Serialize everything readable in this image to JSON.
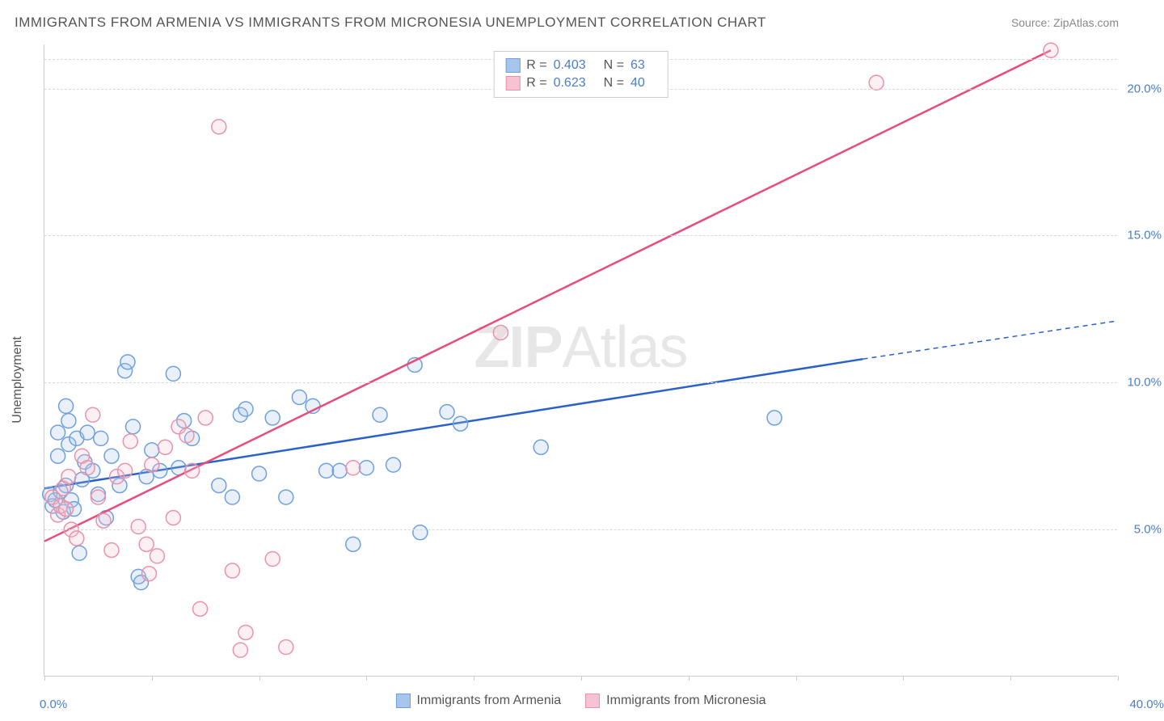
{
  "title": "IMMIGRANTS FROM ARMENIA VS IMMIGRANTS FROM MICRONESIA UNEMPLOYMENT CORRELATION CHART",
  "source": "Source: ZipAtlas.com",
  "watermark": "ZIPAtlas",
  "y_axis_label": "Unemployment",
  "chart": {
    "type": "scatter",
    "background_color": "#ffffff",
    "grid_color": "#d8d8d8",
    "axis_color": "#cccccc",
    "label_color": "#4a7ec9",
    "text_color": "#555555",
    "xlim": [
      0,
      40
    ],
    "ylim": [
      0,
      21.5
    ],
    "x_ticks": [
      0,
      4,
      8,
      12,
      16,
      20,
      24,
      28,
      32,
      36,
      40
    ],
    "x_tick_labels": {
      "0": "0.0%",
      "40": "40.0%"
    },
    "y_grid": [
      5,
      10,
      15,
      20
    ],
    "y_tick_labels": {
      "5": "5.0%",
      "10": "10.0%",
      "15": "15.0%",
      "20": "20.0%"
    },
    "marker_radius": 9,
    "marker_fill_opacity": 0.25,
    "marker_stroke_width": 1.5,
    "line_width": 2.5,
    "series": [
      {
        "name": "Immigrants from Armenia",
        "color_fill": "#a8c5eb",
        "color_stroke": "#6ea0de",
        "line_color": "#2a62c9",
        "r": "0.403",
        "n": "63",
        "regression": {
          "x1": 0,
          "y1": 6.4,
          "x2": 30.5,
          "y2": 10.8,
          "dash_x2": 40,
          "dash_y2": 12.1
        },
        "points": [
          [
            0.2,
            6.2
          ],
          [
            0.3,
            5.8
          ],
          [
            0.4,
            6.0
          ],
          [
            0.5,
            8.3
          ],
          [
            0.5,
            7.5
          ],
          [
            0.6,
            6.3
          ],
          [
            0.7,
            5.6
          ],
          [
            0.8,
            9.2
          ],
          [
            0.8,
            6.5
          ],
          [
            0.9,
            7.9
          ],
          [
            0.9,
            8.7
          ],
          [
            1.0,
            6.0
          ],
          [
            1.1,
            5.7
          ],
          [
            1.2,
            8.1
          ],
          [
            1.3,
            4.2
          ],
          [
            1.4,
            6.7
          ],
          [
            1.5,
            7.3
          ],
          [
            1.6,
            8.3
          ],
          [
            1.8,
            7.0
          ],
          [
            2.0,
            6.2
          ],
          [
            2.1,
            8.1
          ],
          [
            2.3,
            5.4
          ],
          [
            2.5,
            7.5
          ],
          [
            2.8,
            6.5
          ],
          [
            3.0,
            10.4
          ],
          [
            3.1,
            10.7
          ],
          [
            3.3,
            8.5
          ],
          [
            3.5,
            3.4
          ],
          [
            3.6,
            3.2
          ],
          [
            3.8,
            6.8
          ],
          [
            4.0,
            7.7
          ],
          [
            4.3,
            7.0
          ],
          [
            4.8,
            10.3
          ],
          [
            5.0,
            7.1
          ],
          [
            5.2,
            8.7
          ],
          [
            5.5,
            8.1
          ],
          [
            6.5,
            6.5
          ],
          [
            7.0,
            6.1
          ],
          [
            7.3,
            8.9
          ],
          [
            7.5,
            9.1
          ],
          [
            8.0,
            6.9
          ],
          [
            8.5,
            8.8
          ],
          [
            9.0,
            6.1
          ],
          [
            9.5,
            9.5
          ],
          [
            10.0,
            9.2
          ],
          [
            10.5,
            7.0
          ],
          [
            11.0,
            7.0
          ],
          [
            11.5,
            4.5
          ],
          [
            12.0,
            7.1
          ],
          [
            12.5,
            8.9
          ],
          [
            13.0,
            7.2
          ],
          [
            13.8,
            10.6
          ],
          [
            14.0,
            4.9
          ],
          [
            15.0,
            9.0
          ],
          [
            15.5,
            8.6
          ],
          [
            18.5,
            7.8
          ],
          [
            27.2,
            8.8
          ]
        ]
      },
      {
        "name": "Immigrants from Micronesia",
        "color_fill": "#f5c3d1",
        "color_stroke": "#ea92ab",
        "line_color": "#e84c7a",
        "r": "0.623",
        "n": "40",
        "regression": {
          "x1": 0,
          "y1": 4.6,
          "x2": 37.5,
          "y2": 21.3
        },
        "points": [
          [
            0.3,
            6.1
          ],
          [
            0.5,
            5.5
          ],
          [
            0.6,
            5.8
          ],
          [
            0.7,
            6.4
          ],
          [
            0.8,
            5.7
          ],
          [
            0.9,
            6.8
          ],
          [
            1.0,
            5.0
          ],
          [
            1.2,
            4.7
          ],
          [
            1.4,
            7.5
          ],
          [
            1.6,
            7.1
          ],
          [
            1.8,
            8.9
          ],
          [
            2.0,
            6.1
          ],
          [
            2.2,
            5.3
          ],
          [
            2.5,
            4.3
          ],
          [
            2.7,
            6.8
          ],
          [
            3.0,
            7.0
          ],
          [
            3.2,
            8.0
          ],
          [
            3.5,
            5.1
          ],
          [
            3.8,
            4.5
          ],
          [
            3.9,
            3.5
          ],
          [
            4.0,
            7.2
          ],
          [
            4.2,
            4.1
          ],
          [
            4.5,
            7.8
          ],
          [
            4.8,
            5.4
          ],
          [
            5.0,
            8.5
          ],
          [
            5.3,
            8.2
          ],
          [
            5.5,
            7.0
          ],
          [
            5.8,
            2.3
          ],
          [
            6.0,
            8.8
          ],
          [
            6.5,
            18.7
          ],
          [
            7.0,
            3.6
          ],
          [
            7.3,
            0.9
          ],
          [
            7.5,
            1.5
          ],
          [
            8.5,
            4.0
          ],
          [
            9.0,
            1.0
          ],
          [
            11.5,
            7.1
          ],
          [
            17.0,
            11.7
          ],
          [
            31.0,
            20.2
          ],
          [
            37.5,
            21.3
          ]
        ]
      }
    ]
  },
  "legend_top": {
    "r_label": "R =",
    "n_label": "N ="
  },
  "legend_bottom": {}
}
